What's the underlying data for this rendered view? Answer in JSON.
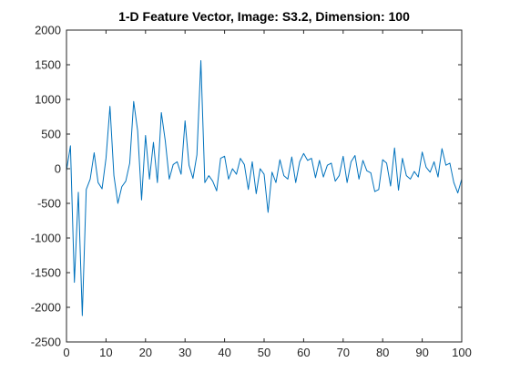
{
  "chart_data": {
    "type": "line",
    "title": "1-D Feature Vector, Image: S3.2, Dimension: 100",
    "xlabel": "",
    "ylabel": "",
    "xlim": [
      0,
      100
    ],
    "ylim": [
      -2500,
      2000
    ],
    "x_ticks": [
      0,
      10,
      20,
      30,
      40,
      50,
      60,
      70,
      80,
      90,
      100
    ],
    "y_ticks": [
      2000,
      1500,
      1000,
      500,
      0,
      -500,
      -1000,
      -1500,
      -2000,
      -2500
    ],
    "grid": false,
    "box": true,
    "series": [
      {
        "color": "#0072BD",
        "x": [
          0,
          1,
          2,
          3,
          4,
          5,
          6,
          7,
          8,
          9,
          10,
          11,
          12,
          13,
          14,
          15,
          16,
          17,
          18,
          19,
          20,
          21,
          22,
          23,
          24,
          25,
          26,
          27,
          28,
          29,
          30,
          31,
          32,
          33,
          34,
          35,
          36,
          37,
          38,
          39,
          40,
          41,
          42,
          43,
          44,
          45,
          46,
          47,
          48,
          49,
          50,
          51,
          52,
          53,
          54,
          55,
          56,
          57,
          58,
          59,
          60,
          61,
          62,
          63,
          64,
          65,
          66,
          67,
          68,
          69,
          70,
          71,
          72,
          73,
          74,
          75,
          76,
          77,
          78,
          79,
          80,
          81,
          82,
          83,
          84,
          85,
          86,
          87,
          88,
          89,
          90,
          91,
          92,
          93,
          94,
          95,
          96,
          97,
          98,
          99,
          100
        ],
        "values": [
          -30,
          330,
          -1640,
          -340,
          -2120,
          -300,
          -150,
          230,
          -200,
          -290,
          150,
          900,
          -100,
          -500,
          -260,
          -180,
          80,
          970,
          550,
          -450,
          480,
          -150,
          380,
          -200,
          810,
          400,
          -150,
          60,
          100,
          -80,
          690,
          50,
          -140,
          200,
          1560,
          -200,
          -100,
          -180,
          -320,
          150,
          180,
          -150,
          0,
          -80,
          150,
          60,
          -300,
          100,
          -360,
          0,
          -80,
          -630,
          -50,
          -200,
          130,
          -100,
          -150,
          170,
          -200,
          100,
          220,
          120,
          150,
          -130,
          120,
          -120,
          50,
          80,
          -180,
          -100,
          180,
          -200,
          100,
          190,
          -150,
          120,
          -30,
          -60,
          -330,
          -300,
          130,
          80,
          -250,
          300,
          -310,
          150,
          -100,
          -150,
          -40,
          -120,
          240,
          20,
          -50,
          100,
          -120,
          290,
          50,
          80,
          -200,
          -350,
          -150
        ]
      }
    ]
  }
}
